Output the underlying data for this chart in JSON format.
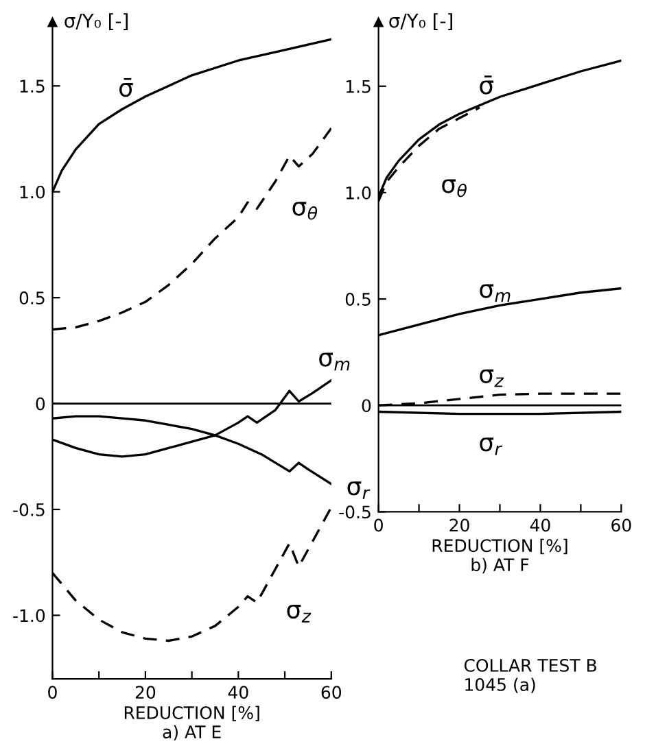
{
  "chart_data": [
    {
      "type": "line",
      "title": "a) AT E",
      "xlabel": "REDUCTION [%]",
      "ylabel": "σ/Y₀ [-]",
      "xlim": [
        0,
        60
      ],
      "ylim": [
        -1.3,
        1.8
      ],
      "xticks": [
        0,
        {
          "value": 10,
          "label": null
        },
        20,
        {
          "value": 30,
          "label": null
        },
        40,
        {
          "value": 50,
          "label": null
        },
        60
      ],
      "yticks": [
        {
          "value": -1.0,
          "label": "-1.0"
        },
        {
          "value": -0.5,
          "label": "-0.5"
        },
        0,
        {
          "value": 0.5,
          "label": "0.5"
        },
        {
          "value": 1.0,
          "label": "1.0"
        },
        {
          "value": 1.5,
          "label": "1.5"
        }
      ],
      "grid": false,
      "legend": false,
      "marker": "none",
      "ref_lines": [
        {
          "axis": "y",
          "value": 0,
          "color": "#000000"
        }
      ],
      "series": [
        {
          "name": "σ̄",
          "color": "#000000",
          "line_style": "solid",
          "x": [
            0,
            2,
            5,
            10,
            15,
            20,
            30,
            40,
            50,
            60
          ],
          "values": [
            1.0,
            1.1,
            1.2,
            1.32,
            1.39,
            1.45,
            1.55,
            1.62,
            1.67,
            1.72
          ]
        },
        {
          "name": "σ$_{θ}$",
          "color": "#000000",
          "line_style": "dashed",
          "x": [
            0,
            5,
            10,
            15,
            20,
            25,
            30,
            35,
            40,
            42,
            44,
            48,
            51,
            53,
            56,
            60
          ],
          "values": [
            0.35,
            0.36,
            0.39,
            0.43,
            0.48,
            0.56,
            0.66,
            0.78,
            0.88,
            0.95,
            0.92,
            1.05,
            1.17,
            1.12,
            1.18,
            1.3
          ]
        },
        {
          "name": "σ$_{m}$",
          "color": "#000000",
          "line_style": "solid",
          "x": [
            0,
            5,
            10,
            15,
            20,
            25,
            30,
            35,
            40,
            42,
            44,
            48,
            51,
            53,
            56,
            60
          ],
          "values": [
            -0.17,
            -0.21,
            -0.24,
            -0.25,
            -0.24,
            -0.21,
            -0.18,
            -0.15,
            -0.09,
            -0.06,
            -0.09,
            -0.03,
            0.06,
            0.01,
            0.05,
            0.11
          ]
        },
        {
          "name": "σ$_{r}$",
          "color": "#000000",
          "line_style": "solid",
          "x": [
            0,
            5,
            10,
            15,
            20,
            25,
            30,
            35,
            40,
            45,
            51,
            53,
            55,
            60
          ],
          "values": [
            -0.07,
            -0.06,
            -0.06,
            -0.07,
            -0.08,
            -0.1,
            -0.12,
            -0.15,
            -0.19,
            -0.24,
            -0.32,
            -0.28,
            -0.31,
            -0.38
          ]
        },
        {
          "name": "σ$_{z}$",
          "color": "#000000",
          "line_style": "dashed",
          "x": [
            0,
            5,
            10,
            15,
            20,
            25,
            30,
            35,
            40,
            42,
            44,
            48,
            51,
            53,
            56,
            60
          ],
          "values": [
            -0.8,
            -0.93,
            -1.02,
            -1.08,
            -1.11,
            -1.12,
            -1.1,
            -1.05,
            -0.96,
            -0.91,
            -0.94,
            -0.78,
            -0.66,
            -0.77,
            -0.65,
            -0.49
          ]
        }
      ]
    },
    {
      "type": "line",
      "title": "b) AT F",
      "xlabel": "REDUCTION [%]",
      "ylabel": "σ/Y₀ [-]",
      "xlim": [
        0,
        60
      ],
      "ylim": [
        -0.5,
        1.8
      ],
      "xticks": [
        0,
        {
          "value": 10,
          "label": null
        },
        20,
        {
          "value": 30,
          "label": null
        },
        40,
        {
          "value": 50,
          "label": null
        },
        60
      ],
      "yticks": [
        {
          "value": -0.5,
          "label": "-0.5"
        },
        0,
        {
          "value": 0.5,
          "label": "0.5"
        },
        {
          "value": 1.0,
          "label": "1.0"
        },
        {
          "value": 1.5,
          "label": "1.5"
        }
      ],
      "grid": false,
      "legend": false,
      "marker": "none",
      "ref_lines": [
        {
          "axis": "y",
          "value": 0,
          "color": "#000000"
        }
      ],
      "annotations": [
        "COLLAR TEST B\n1045 (a)"
      ],
      "series": [
        {
          "name": "σ̄",
          "color": "#000000",
          "line_style": "solid",
          "x": [
            0,
            2,
            5,
            10,
            15,
            20,
            30,
            40,
            50,
            60
          ],
          "values": [
            0.98,
            1.07,
            1.15,
            1.25,
            1.32,
            1.37,
            1.45,
            1.51,
            1.57,
            1.62
          ]
        },
        {
          "name": "σ$_{θ}$",
          "color": "#000000",
          "line_style": "dashed",
          "x": [
            0,
            2,
            5,
            10,
            15,
            20,
            25
          ],
          "values": [
            0.96,
            1.05,
            1.12,
            1.22,
            1.3,
            1.35,
            1.4
          ]
        },
        {
          "name": "σ$_{m}$",
          "color": "#000000",
          "line_style": "solid",
          "x": [
            0,
            10,
            20,
            30,
            40,
            50,
            60
          ],
          "values": [
            0.33,
            0.38,
            0.43,
            0.47,
            0.5,
            0.53,
            0.55
          ]
        },
        {
          "name": "σ$_{z}$",
          "color": "#000000",
          "line_style": "dashed",
          "x": [
            0,
            10,
            20,
            30,
            40,
            50,
            60
          ],
          "values": [
            0.0,
            0.01,
            0.03,
            0.05,
            0.055,
            0.055,
            0.055
          ]
        },
        {
          "name": "σ$_{r}$",
          "color": "#000000",
          "line_style": "solid",
          "x": [
            0,
            20,
            40,
            60
          ],
          "values": [
            -0.03,
            -0.04,
            -0.04,
            -0.03
          ]
        }
      ]
    }
  ]
}
